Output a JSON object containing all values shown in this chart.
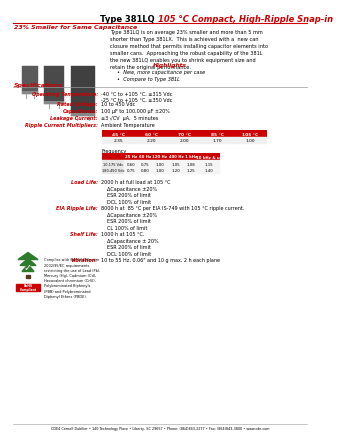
{
  "title_black": "Type 381LQ ",
  "title_red": "105 °C Compact, High-Ripple Snap-in",
  "subtitle": "23% Smaller for Same Capacitance",
  "body_text": "Type 381LQ is on average 23% smaller and more than 5 mm\nshorter than Type 381LX.  This is achieved with a  new can\nclosure method that permits installing capacitor elements into\nsmaller cans.  Approaching the robust capability of the 381L\nthe new 381LQ enables you to shrink equipment size and\nretain the original performance.",
  "highlights_title": "Highlights",
  "highlights_bullets": [
    "New, more capacitance per case",
    "Compare to Type 381L"
  ],
  "specs_title": "Specifications",
  "amb_temp_headers": [
    "45 °C",
    "60 °C",
    "70 °C",
    "85 °C",
    "105 °C"
  ],
  "amb_temp_values": [
    "2.35",
    "2.20",
    "2.00",
    "1.70",
    "1.00"
  ],
  "freq_label": "Frequency",
  "freq_headers": [
    "25 Hz",
    "60 Hz",
    "120 Hz",
    "400 Hz",
    "1 kHz",
    "10 kHz & up"
  ],
  "freq_row1_label": "10-175 Vdc",
  "freq_row1": [
    "0.60",
    "0.75",
    "1.00",
    "1.05",
    "1.08",
    "1.15"
  ],
  "freq_row2_label": "180-450 Vdc",
  "freq_row2": [
    "0.75",
    "0.80",
    "1.00",
    "1.20",
    "1.25",
    "1.40"
  ],
  "load_life_label": "Load Life:",
  "load_life_text": "2000 h at full load at 105 °C\n    ΔCapacitance ±20%\n    ESR 200% of limit\n    DCL 100% of limit",
  "eia_label": "EIA Ripple Life:",
  "eia_text": "8000 h at  85 °C per EIA IS-749 with 105 °C ripple current.\n    ΔCapacitance ±20%\n    ESR 200% of limit\n    CL 100% of limit",
  "shelf_label": "Shelf Life:",
  "shelf_text": "1000 h at 105 °C.\n    ΔCapacitance ± 20%\n    ESR 200% of limit\n    DCL 100% of limit",
  "vib_label": "Vibration:",
  "vib_text": "10 to 55 Hz, 0.06\" and 10 g max, 2 h each plane",
  "footer": "CDE4 Cornell Dubilier • 140 Technology Place • Liberty, SC 29657 • Phone: (864)843-2277 • Fax: (864)843-3800 • www.cde.com",
  "rohs_text": "Complies with the EU Directive\n2002/95/EC requirements\nrestricting the use of Lead (Pb),\nMercury (Hg), Cadmium (Cd),\nHexavalent chromium (CrVI),\nPolybrominated Biphenyls\n(PBB) and Polybrominated\nDiphenyl Ethers (PBDE).",
  "color_red": "#cc0000",
  "color_black": "#000000",
  "bg_color": "#ffffff",
  "table_header_bg": "#cc0000"
}
